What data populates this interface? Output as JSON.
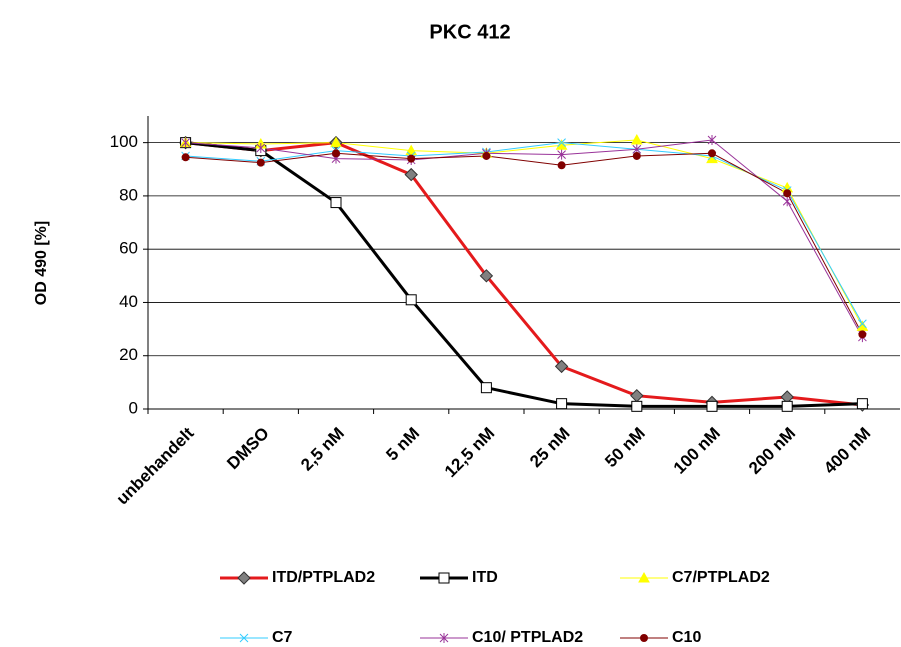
{
  "chart_data": {
    "type": "line",
    "title": "PKC 412",
    "y_label": "OD 490 [%]",
    "categories": [
      "unbehandelt",
      "DMSO",
      "2,5 nM",
      "5 nM",
      "12,5 nM",
      "25 nM",
      "50 nM",
      "100 nM",
      "200 nM",
      "400 nM"
    ],
    "ylim": [
      0,
      110
    ],
    "yticks": [
      0,
      20,
      40,
      60,
      80,
      100
    ],
    "grid": true,
    "series": [
      {
        "name": "ITD/PTPLAD2",
        "color": "#e41a1c",
        "marker": "diamond",
        "marker_fill": "#808080",
        "line_width": 3,
        "values": [
          100,
          97,
          100,
          88,
          50,
          16,
          5,
          2.5,
          4.5,
          1.5
        ]
      },
      {
        "name": "ITD",
        "color": "#000000",
        "marker": "square",
        "marker_fill": "#ffffff",
        "line_width": 3,
        "values": [
          100,
          97,
          77.5,
          41,
          8,
          2,
          1,
          1,
          1,
          2
        ]
      },
      {
        "name": "C7/PTPLAD2",
        "color": "#ffff00",
        "marker": "triangle",
        "marker_fill": "#ffff00",
        "line_width": 1,
        "values": [
          100,
          99.5,
          100,
          97,
          96,
          99,
          101,
          94,
          83,
          31
        ]
      },
      {
        "name": "C7",
        "color": "#33ccff",
        "marker": "x",
        "marker_fill": "#33ccff",
        "line_width": 1,
        "values": [
          95,
          93,
          97,
          95,
          96.5,
          100,
          97.5,
          95,
          82,
          32
        ]
      },
      {
        "name": "C10/ PTPLAD2",
        "color": "#993399",
        "marker": "star",
        "marker_fill": "#993399",
        "line_width": 1,
        "values": [
          100,
          98,
          94,
          93.5,
          96,
          95.5,
          97.5,
          101,
          78,
          27
        ]
      },
      {
        "name": "C10",
        "color": "#800000",
        "marker": "circle",
        "marker_fill": "#800000",
        "line_width": 1,
        "values": [
          94.5,
          92.5,
          96,
          94,
          95,
          91.5,
          95,
          96,
          81,
          28
        ]
      }
    ]
  }
}
